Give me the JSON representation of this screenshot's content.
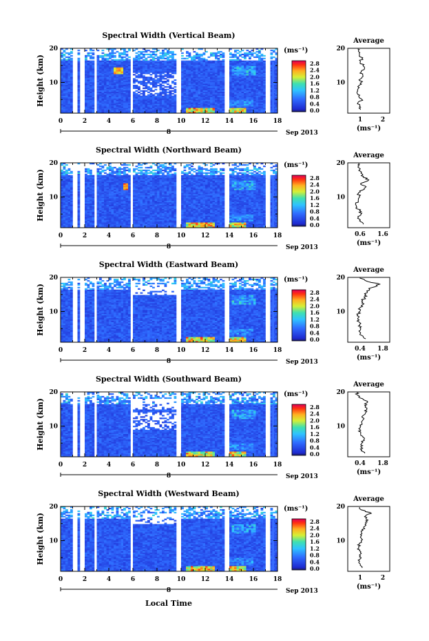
{
  "colorbar": {
    "unit": "(ms⁻¹)",
    "ticks": [
      "2.8",
      "2.4",
      "2.0",
      "1.6",
      "1.2",
      "0.8",
      "0.4",
      "0.0"
    ]
  },
  "xaxis": {
    "ticks": [
      "0",
      "2",
      "4",
      "6",
      "8",
      "10",
      "12",
      "14",
      "16",
      "18"
    ],
    "day": "8",
    "date_label": "Sep 2013",
    "label": "Local Time"
  },
  "yaxis": {
    "label": "Height (km)",
    "ticks": [
      "20",
      "10"
    ]
  },
  "avg_title": "Average",
  "avg_xlabel": "(ms⁻¹)",
  "chart_data": [
    {
      "type": "heatmap",
      "title": "Spectral Width (Vertical Beam)",
      "ylabel": "Height (km)",
      "ylim": [
        1,
        20
      ],
      "xlim": [
        0,
        18
      ],
      "clim": [
        0,
        3.0
      ],
      "avg_xticks": [
        "1",
        "2"
      ],
      "avg_xlim": [
        0,
        2.5
      ],
      "avg_profile": [
        [
          2.0,
          0.75
        ],
        [
          3,
          0.7
        ],
        [
          4,
          0.6
        ],
        [
          5,
          0.85
        ],
        [
          6,
          0.65
        ],
        [
          7,
          0.55
        ],
        [
          8,
          0.6
        ],
        [
          9,
          0.65
        ],
        [
          10,
          0.8
        ],
        [
          11,
          0.75
        ],
        [
          12,
          0.9
        ],
        [
          13,
          0.8
        ],
        [
          14,
          1.0
        ],
        [
          15,
          0.9
        ],
        [
          16,
          0.75
        ],
        [
          17,
          0.85
        ],
        [
          18,
          0.7
        ],
        [
          19,
          0.65
        ],
        [
          19.8,
          0.6
        ]
      ]
    },
    {
      "type": "heatmap",
      "title": "Spectral Width (Northward Beam)",
      "ylabel": "Height (km)",
      "ylim": [
        1,
        20
      ],
      "xlim": [
        0,
        18
      ],
      "clim": [
        0,
        3.0
      ],
      "avg_xticks": [
        "0.6",
        "1.6"
      ],
      "avg_xlim": [
        0.3,
        1.9
      ],
      "avg_profile": [
        [
          2.0,
          0.9
        ],
        [
          3,
          0.75
        ],
        [
          4,
          0.7
        ],
        [
          5,
          0.8
        ],
        [
          6,
          0.75
        ],
        [
          7,
          0.65
        ],
        [
          8,
          0.6
        ],
        [
          9,
          0.7
        ],
        [
          10,
          0.75
        ],
        [
          11,
          0.7
        ],
        [
          12,
          0.85
        ],
        [
          13,
          1.0
        ],
        [
          14,
          0.8
        ],
        [
          15,
          1.1
        ],
        [
          16,
          0.9
        ],
        [
          17,
          0.8
        ],
        [
          18,
          0.75
        ],
        [
          19,
          0.7
        ],
        [
          19.8,
          0.7
        ]
      ]
    },
    {
      "type": "heatmap",
      "title": "Spectral Width (Eastward Beam)",
      "ylabel": "Height (km)",
      "ylim": [
        1,
        20
      ],
      "xlim": [
        0,
        18
      ],
      "clim": [
        0,
        3.0
      ],
      "avg_xticks": [
        "0.4",
        "1.8"
      ],
      "avg_xlim": [
        0.1,
        2.2
      ],
      "avg_profile": [
        [
          2.0,
          1.0
        ],
        [
          3,
          0.8
        ],
        [
          4,
          0.7
        ],
        [
          5,
          0.75
        ],
        [
          6,
          0.7
        ],
        [
          7,
          0.65
        ],
        [
          8,
          0.6
        ],
        [
          9,
          0.6
        ],
        [
          10,
          0.7
        ],
        [
          11,
          0.7
        ],
        [
          12,
          0.85
        ],
        [
          13,
          0.8
        ],
        [
          14,
          0.95
        ],
        [
          15,
          1.0
        ],
        [
          16,
          1.05
        ],
        [
          17,
          1.3
        ],
        [
          18,
          1.7
        ],
        [
          19,
          1.0
        ],
        [
          19.8,
          0.7
        ]
      ]
    },
    {
      "type": "heatmap",
      "title": "Spectral Width (Southward Beam)",
      "ylabel": "Height (km)",
      "ylim": [
        1,
        20
      ],
      "xlim": [
        0,
        18
      ],
      "clim": [
        0,
        3.0
      ],
      "avg_xticks": [
        "0.4",
        "1.8"
      ],
      "avg_xlim": [
        0.1,
        2.2
      ],
      "avg_profile": [
        [
          2.0,
          0.95
        ],
        [
          3,
          0.8
        ],
        [
          4,
          0.75
        ],
        [
          5,
          0.8
        ],
        [
          6,
          0.9
        ],
        [
          7,
          0.85
        ],
        [
          8,
          0.75
        ],
        [
          9,
          0.7
        ],
        [
          10,
          0.75
        ],
        [
          11,
          0.8
        ],
        [
          12,
          0.9
        ],
        [
          13,
          0.85
        ],
        [
          14,
          1.0
        ],
        [
          15,
          1.05
        ],
        [
          16,
          0.95
        ],
        [
          17,
          1.1
        ],
        [
          18,
          0.85
        ],
        [
          19,
          0.6
        ],
        [
          19.8,
          0.55
        ]
      ]
    },
    {
      "type": "heatmap",
      "title": "Spectral Width (Westward Beam)",
      "ylabel": "Height (km)",
      "ylim": [
        1,
        20
      ],
      "xlim": [
        0,
        18
      ],
      "clim": [
        0,
        3.0
      ],
      "avg_xticks": [
        "1",
        "2"
      ],
      "avg_xlim": [
        0,
        2.5
      ],
      "avg_profile": [
        [
          2.0,
          0.85
        ],
        [
          3,
          0.75
        ],
        [
          4,
          0.7
        ],
        [
          5,
          0.8
        ],
        [
          6,
          0.75
        ],
        [
          7,
          0.7
        ],
        [
          8,
          0.65
        ],
        [
          9,
          0.7
        ],
        [
          10,
          0.8
        ],
        [
          11,
          0.75
        ],
        [
          12,
          0.85
        ],
        [
          13,
          0.9
        ],
        [
          14,
          0.95
        ],
        [
          15,
          1.1
        ],
        [
          16,
          1.2
        ],
        [
          17,
          1.0
        ],
        [
          18,
          1.4
        ],
        [
          19,
          0.8
        ],
        [
          19.8,
          0.7
        ]
      ]
    }
  ]
}
